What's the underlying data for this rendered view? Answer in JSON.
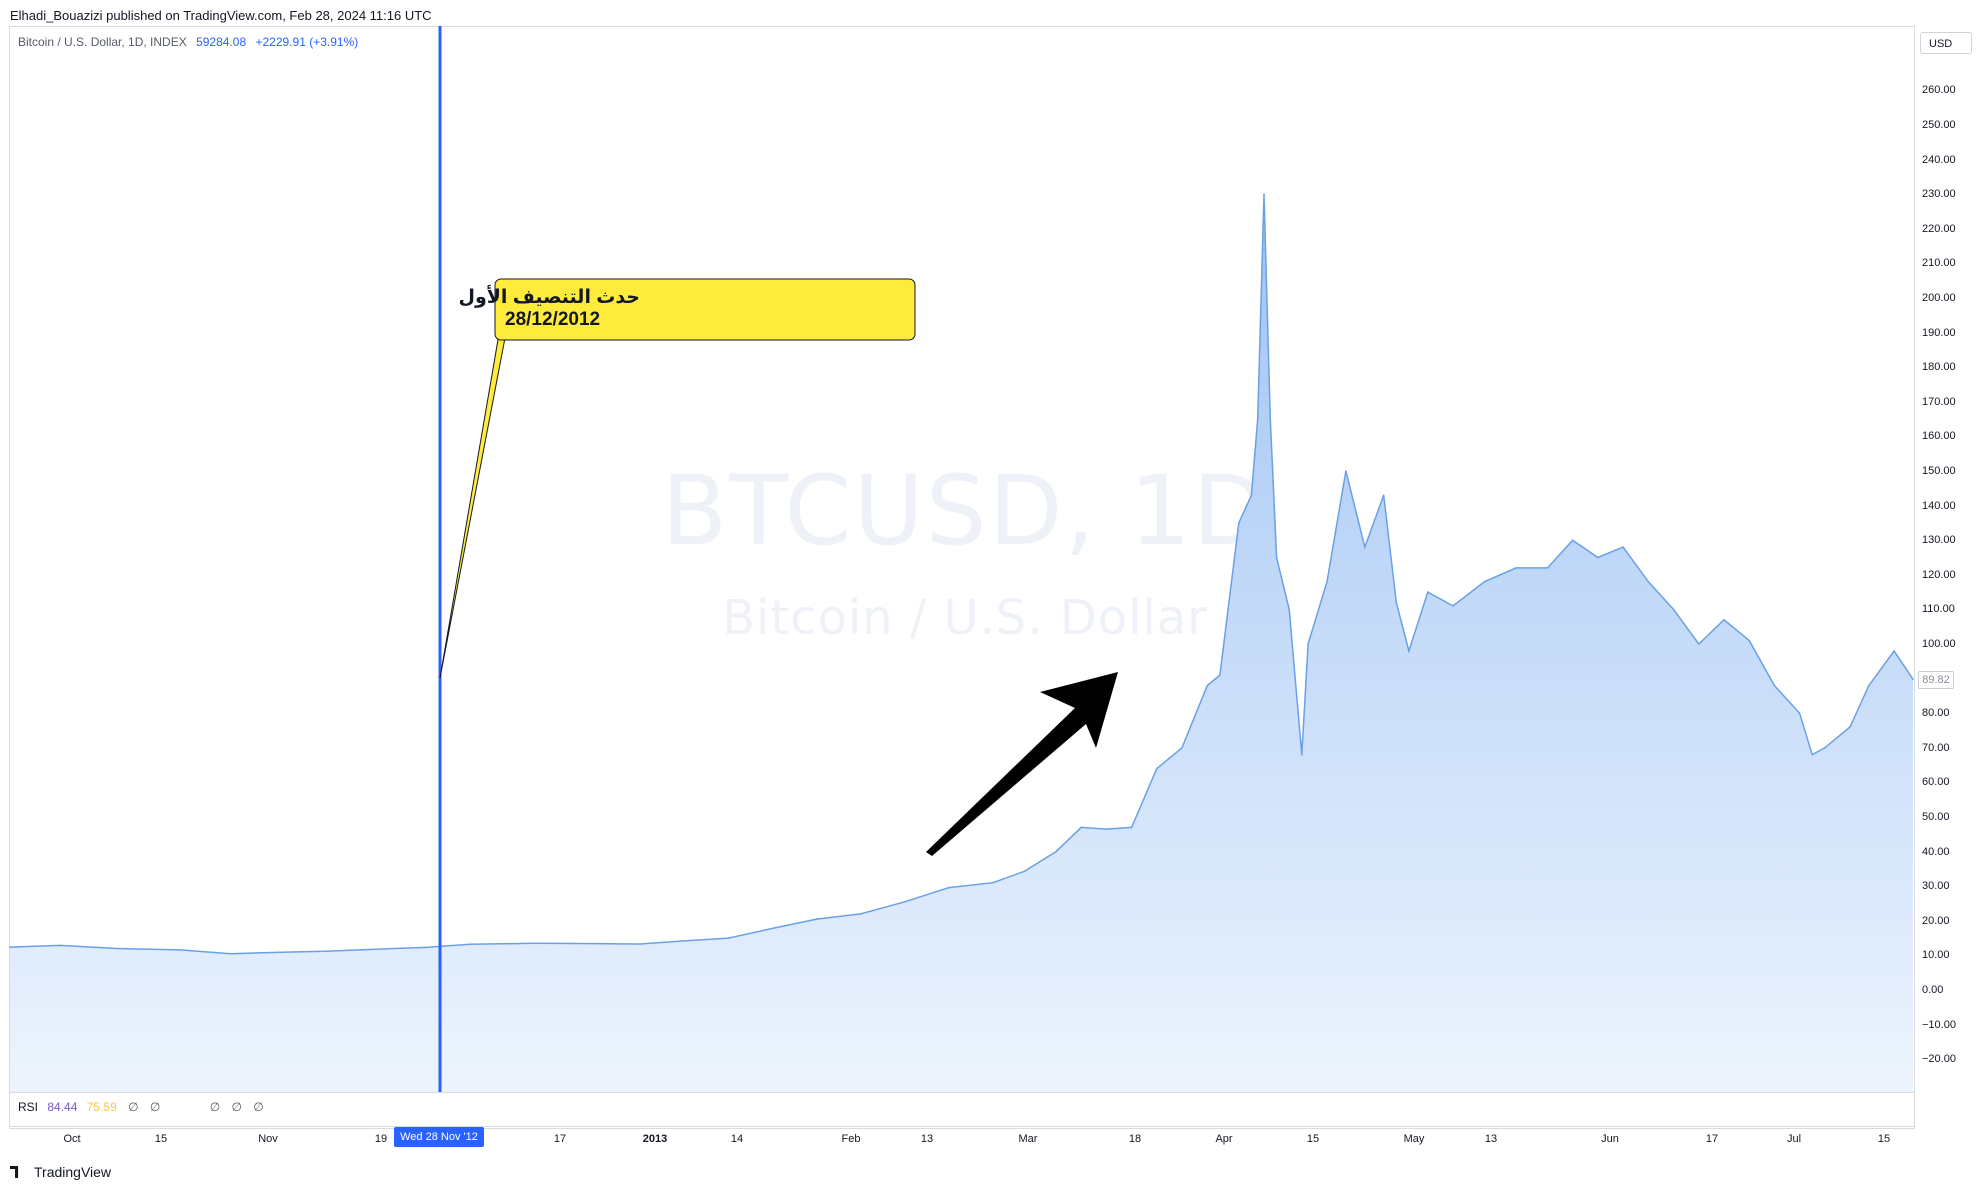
{
  "publisher_line": "Elhadi_Bouazizi published on TradingView.com, Feb 28, 2024 11:16 UTC",
  "symbol": {
    "name": "Bitcoin / U.S. Dollar, 1D, INDEX",
    "last": "59284.08",
    "change": "+2229.91 (+3.91%)"
  },
  "watermark": {
    "title": "BTCUSD, 1D",
    "subtitle": "Bitcoin / U.S. Dollar"
  },
  "currency": "USD",
  "last_price_label": "89.82",
  "annotation": {
    "line1": "حدث التنصيف الأول",
    "line2": "28/12/2012"
  },
  "rsi": {
    "label": "RSI",
    "value1": "84.44",
    "value2": "75.59",
    "symbols": [
      "∅",
      "∅",
      "∅",
      "∅",
      "∅"
    ]
  },
  "cursor_date": "Wed 28 Nov '12",
  "footer": "TradingView",
  "colors": {
    "line": "#6aa0e6",
    "fill_top": "#aecdf6",
    "fill_bottom": "#e8f1fc",
    "cursor_line": "#2962ff",
    "callout_fill": "#ffeb3b"
  },
  "chart_data": {
    "type": "area",
    "title": "",
    "xlabel": "",
    "ylabel": "",
    "ylim": [
      -30,
      270
    ],
    "y_ticks": [
      "260.00",
      "250.00",
      "240.00",
      "230.00",
      "220.00",
      "210.00",
      "200.00",
      "190.00",
      "180.00",
      "170.00",
      "160.00",
      "150.00",
      "140.00",
      "130.00",
      "120.00",
      "110.00",
      "100.00",
      "90.00",
      "80.00",
      "70.00",
      "60.00",
      "50.00",
      "40.00",
      "30.00",
      "20.00",
      "10.00",
      "0.00",
      "−10.00",
      "−20.00"
    ],
    "x_ticks": [
      {
        "label": "Oct",
        "bold": false
      },
      {
        "label": "15",
        "bold": false
      },
      {
        "label": "Nov",
        "bold": false
      },
      {
        "label": "19",
        "bold": false
      },
      {
        "label": "17",
        "bold": false
      },
      {
        "label": "2013",
        "bold": true
      },
      {
        "label": "14",
        "bold": false
      },
      {
        "label": "Feb",
        "bold": false
      },
      {
        "label": "13",
        "bold": false
      },
      {
        "label": "Mar",
        "bold": false
      },
      {
        "label": "18",
        "bold": false
      },
      {
        "label": "Apr",
        "bold": false
      },
      {
        "label": "15",
        "bold": false
      },
      {
        "label": "May",
        "bold": false
      },
      {
        "label": "13",
        "bold": false
      },
      {
        "label": "Jun",
        "bold": false
      },
      {
        "label": "17",
        "bold": false
      },
      {
        "label": "Jul",
        "bold": false
      },
      {
        "label": "15",
        "bold": false
      }
    ],
    "series": [
      {
        "x": [
          "2012-09-23",
          "2012-10-01",
          "2012-10-10",
          "2012-10-20",
          "2012-10-28",
          "2012-11-05",
          "2012-11-12",
          "2012-11-20",
          "2012-11-28",
          "2012-12-05",
          "2012-12-15",
          "2012-12-25",
          "2013-01-01",
          "2013-01-08",
          "2013-01-15",
          "2013-01-22",
          "2013-01-29",
          "2013-02-05",
          "2013-02-12",
          "2013-02-19",
          "2013-02-26",
          "2013-03-03",
          "2013-03-08",
          "2013-03-12",
          "2013-03-16",
          "2013-03-20",
          "2013-03-24",
          "2013-03-28",
          "2013-04-01",
          "2013-04-03",
          "2013-04-06",
          "2013-04-08",
          "2013-04-09",
          "2013-04-10",
          "2013-04-11",
          "2013-04-12",
          "2013-04-14",
          "2013-04-16",
          "2013-04-17",
          "2013-04-20",
          "2013-04-23",
          "2013-04-26",
          "2013-04-29",
          "2013-05-01",
          "2013-05-03",
          "2013-05-06",
          "2013-05-10",
          "2013-05-15",
          "2013-05-20",
          "2013-05-25",
          "2013-05-29",
          "2013-06-02",
          "2013-06-06",
          "2013-06-10",
          "2013-06-14",
          "2013-06-18",
          "2013-06-22",
          "2013-06-26",
          "2013-06-30",
          "2013-07-04",
          "2013-07-06",
          "2013-07-08",
          "2013-07-12",
          "2013-07-15",
          "2013-07-19",
          "2013-07-22"
        ],
        "values": [
          12.4,
          12.9,
          12.0,
          11.6,
          10.5,
          10.9,
          11.2,
          11.8,
          12.3,
          13.2,
          13.5,
          13.4,
          13.3,
          14.2,
          15.0,
          17.8,
          20.5,
          22.0,
          25.5,
          29.6,
          31.0,
          34.3,
          40.0,
          47.0,
          46.5,
          47.0,
          64.0,
          70.0,
          88.0,
          91.0,
          135.0,
          143.0,
          165.0,
          230.0,
          165.0,
          125.0,
          110.0,
          68.0,
          100.0,
          118.0,
          150.0,
          128.0,
          143.0,
          112.0,
          98.0,
          115.0,
          111.0,
          118.0,
          122.0,
          122.0,
          130.0,
          125.0,
          128.0,
          118.0,
          110.0,
          100.0,
          107.0,
          101.0,
          88.0,
          80.0,
          68.0,
          70.0,
          76.0,
          88.0,
          98.0,
          89.8
        ]
      }
    ]
  }
}
